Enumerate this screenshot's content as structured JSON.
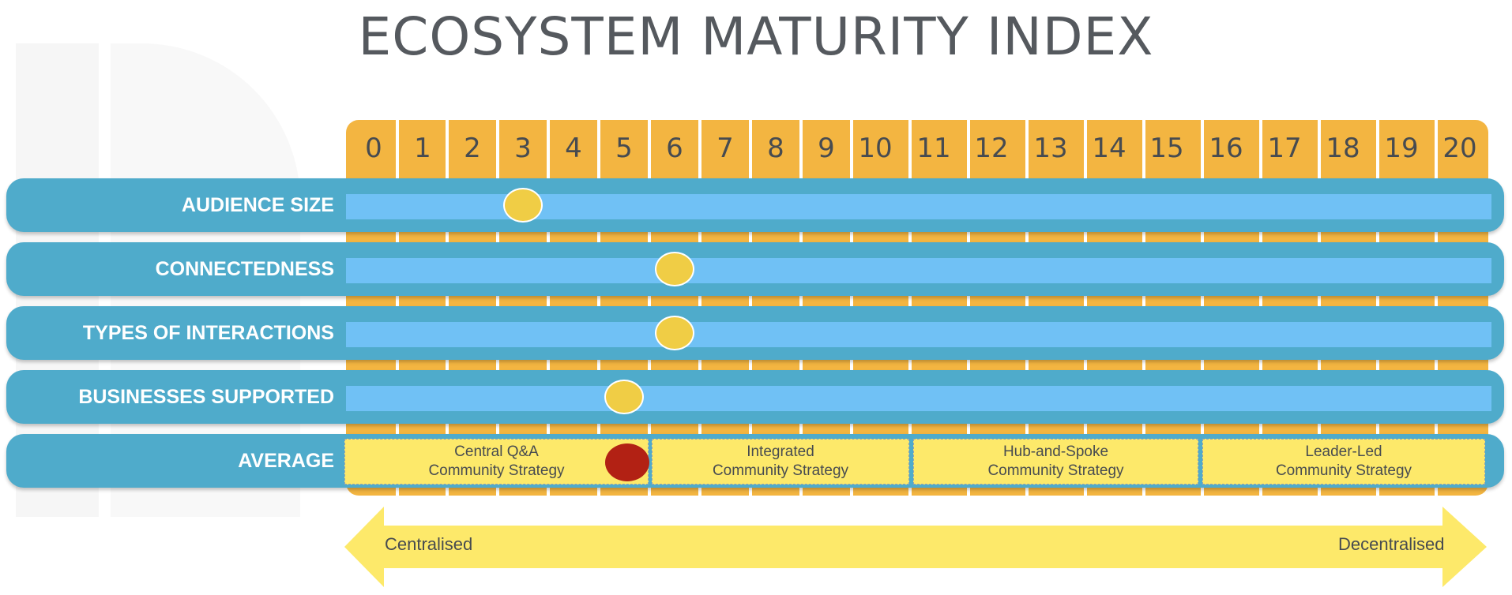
{
  "title": "ECOSYSTEM MATURITY INDEX",
  "scale": {
    "ticks": [
      "0",
      "1",
      "2",
      "3",
      "4",
      "5",
      "6",
      "7",
      "8",
      "9",
      "10",
      "11",
      "12",
      "13",
      "14",
      "15",
      "16",
      "17",
      "18",
      "19",
      "20"
    ]
  },
  "rows": [
    {
      "label": "AUDIENCE SIZE",
      "value": 3
    },
    {
      "label": "CONNECTEDNESS",
      "value": 6
    },
    {
      "label": "TYPES OF INTERACTIONS",
      "value": 6
    },
    {
      "label": "BUSINESSES SUPPORTED",
      "value": 5
    }
  ],
  "average": {
    "label": "AVERAGE",
    "value": 5,
    "strategies": [
      {
        "line1": "Central Q&A",
        "line2": "Community Strategy"
      },
      {
        "line1": "Integrated",
        "line2": "Community Strategy"
      },
      {
        "line1": "Hub-and-Spoke",
        "line2": "Community Strategy"
      },
      {
        "line1": "Leader-Led",
        "line2": "Community Strategy"
      }
    ]
  },
  "axis": {
    "left_label": "Centralised",
    "right_label": "Decentralised"
  },
  "colors": {
    "scale": "#f3b541",
    "row": "#4fabcb",
    "track": "#70c1f5",
    "marker": "#f0cd45",
    "average_marker": "#b22114",
    "strategy_box": "#fde96a",
    "arrow": "#fde96a"
  }
}
